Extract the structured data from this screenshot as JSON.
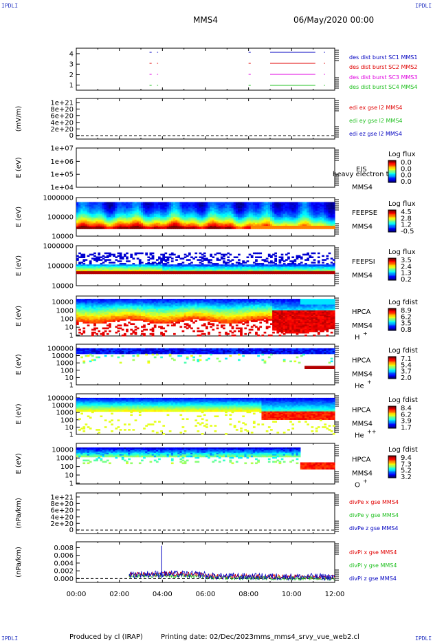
{
  "corners": {
    "top_left": "IPDLI",
    "top_right": "IPDLI",
    "bottom_left": "IPDLI",
    "bottom_right": "IPDLI"
  },
  "header": {
    "spacecraft": "MMS4",
    "date": "06/May/2020 00:00"
  },
  "footer": {
    "produced_by": "Produced by cl (IRAP)",
    "printing_date": "Printing date: 02/Dec/2023",
    "filename": "mms_mms4_srvy_vue_web2.cl"
  },
  "colors": {
    "red": "#e00000",
    "magenta": "#e000e0",
    "green": "#20c020",
    "blue": "#0000c0",
    "black": "#000000"
  },
  "chart_data": [
    {
      "type": "line",
      "panel": "burst",
      "yticks": [
        "1",
        "2",
        "3",
        "4"
      ],
      "series": [
        {
          "name": "des dist burst SC1 MMS1",
          "color": "#0000c0",
          "segments_hours": [
            [
              8.0,
              8.1
            ],
            [
              9.0,
              11.1
            ],
            [
              11.5,
              11.55
            ]
          ],
          "y": 4
        },
        {
          "name": "des dist burst SC2 MMS2",
          "color": "#e00000",
          "segments_hours": [
            [
              8.0,
              8.1
            ],
            [
              9.0,
              11.1
            ],
            [
              11.5,
              11.55
            ]
          ],
          "y": 3
        },
        {
          "name": "des dist burst SC3 MMS3",
          "color": "#e000e0",
          "segments_hours": [
            [
              8.0,
              8.1
            ],
            [
              9.0,
              11.1
            ],
            [
              11.5,
              11.55
            ]
          ],
          "y": 2
        },
        {
          "name": "des dist burst SC4 MMS4",
          "color": "#20c020",
          "segments_hours": [
            [
              8.0,
              8.1
            ],
            [
              9.0,
              11.1
            ],
            [
              11.5,
              11.55
            ]
          ],
          "y": 1
        }
      ]
    },
    {
      "type": "line",
      "panel": "edi",
      "ylabel": "(mV/m)",
      "yticks": [
        "0",
        "2e+20",
        "4e+20",
        "6e+20",
        "8e+20",
        "1e+21"
      ],
      "series": [
        {
          "name": "edi ex gse l2 MMS4",
          "color": "#e00000"
        },
        {
          "name": "edi ey gse l2 MMS4",
          "color": "#20c020"
        },
        {
          "name": "edi ez gse l2 MMS4",
          "color": "#0000c0"
        }
      ]
    },
    {
      "type": "heatmap",
      "panel": "eis",
      "ylabel": "E (eV)",
      "yticks": [
        "1e+04",
        "1e+05",
        "1e+06",
        "1e+07"
      ],
      "instrument": "EIS",
      "spacecraft": "MMS4",
      "overlay": "heavy electron to",
      "colorbar": {
        "title": "Log flux",
        "ticks": [
          "0.0",
          "0.0",
          "0.0",
          "0.0"
        ]
      }
    },
    {
      "type": "heatmap",
      "panel": "feepse",
      "ylabel": "E (eV)",
      "yticks": [
        "10000",
        "100000",
        "1000000"
      ],
      "instrument": "FEEPSE",
      "spacecraft": "MMS4",
      "colorbar": {
        "title": "Log flux",
        "ticks": [
          "4.5",
          "2.8",
          "1.2",
          "-0.5"
        ]
      }
    },
    {
      "type": "heatmap",
      "panel": "feepsi",
      "ylabel": "E (eV)",
      "yticks": [
        "10000",
        "100000",
        "1000000"
      ],
      "instrument": "FEEPSI",
      "spacecraft": "MMS4",
      "colorbar": {
        "title": "Log flux",
        "ticks": [
          "3.5",
          "2.4",
          "1.3",
          "0.2"
        ]
      }
    },
    {
      "type": "heatmap",
      "panel": "hpca_h",
      "ylabel": "E (eV)",
      "yticks": [
        "1",
        "10",
        "100",
        "1000",
        "10000"
      ],
      "instrument": "HPCA",
      "spacecraft": "MMS4",
      "species": "H",
      "charge": "+",
      "colorbar": {
        "title": "Log fdist",
        "ticks": [
          "8.9",
          "6.2",
          "3.5",
          "0.8"
        ]
      }
    },
    {
      "type": "heatmap",
      "panel": "hpca_he",
      "ylabel": "E (eV)",
      "yticks": [
        "1",
        "10",
        "100",
        "1000",
        "10000",
        "100000"
      ],
      "instrument": "HPCA",
      "spacecraft": "MMS4",
      "species": "He",
      "charge": "+",
      "colorbar": {
        "title": "Log fdist",
        "ticks": [
          "7.1",
          "5.4",
          "3.7",
          "2.0"
        ]
      }
    },
    {
      "type": "heatmap",
      "panel": "hpca_hepp",
      "ylabel": "E (eV)",
      "yticks": [
        "1",
        "10",
        "100",
        "1000",
        "10000",
        "100000"
      ],
      "instrument": "HPCA",
      "spacecraft": "MMS4",
      "species": "He",
      "charge": "++",
      "colorbar": {
        "title": "Log fdist",
        "ticks": [
          "8.4",
          "6.2",
          "3.9",
          "1.7"
        ]
      }
    },
    {
      "type": "heatmap",
      "panel": "hpca_o",
      "ylabel": "E (eV)",
      "yticks": [
        "1",
        "10",
        "100",
        "1000",
        "10000"
      ],
      "instrument": "HPCA",
      "spacecraft": "MMS4",
      "species": "O",
      "charge": "+",
      "colorbar": {
        "title": "Log fdist",
        "ticks": [
          "9.4",
          "7.3",
          "5.2",
          "3.2"
        ]
      }
    },
    {
      "type": "line",
      "panel": "divpe",
      "ylabel": "(nPa/km)",
      "yticks": [
        "0",
        "2e+20",
        "4e+20",
        "6e+20",
        "8e+20",
        "1e+21"
      ],
      "series": [
        {
          "name": "divPe x gse MMS4",
          "color": "#e00000"
        },
        {
          "name": "divPe y gse MMS4",
          "color": "#20c020"
        },
        {
          "name": "divPe z gse MMS4",
          "color": "#0000c0"
        }
      ]
    },
    {
      "type": "line",
      "panel": "divpi",
      "ylabel": "(nPa/km)",
      "yticks": [
        "0.000",
        "0.002",
        "0.004",
        "0.006",
        "0.008"
      ],
      "ylim": [
        -0.001,
        0.0095
      ],
      "series": [
        {
          "name": "divPi x gse MMS4",
          "color": "#e00000"
        },
        {
          "name": "divPi y gse MMS4",
          "color": "#20c020"
        },
        {
          "name": "divPi z gse MMS4",
          "color": "#0000c0"
        }
      ],
      "spike": {
        "x_hours": 3.95,
        "y": 0.0085
      }
    },
    {
      "type": "axis",
      "panel": "time",
      "xticks": [
        "00:00",
        "02:00",
        "04:00",
        "06:00",
        "08:00",
        "10:00",
        "12:00"
      ],
      "xlim_hours": [
        0,
        12
      ]
    }
  ]
}
